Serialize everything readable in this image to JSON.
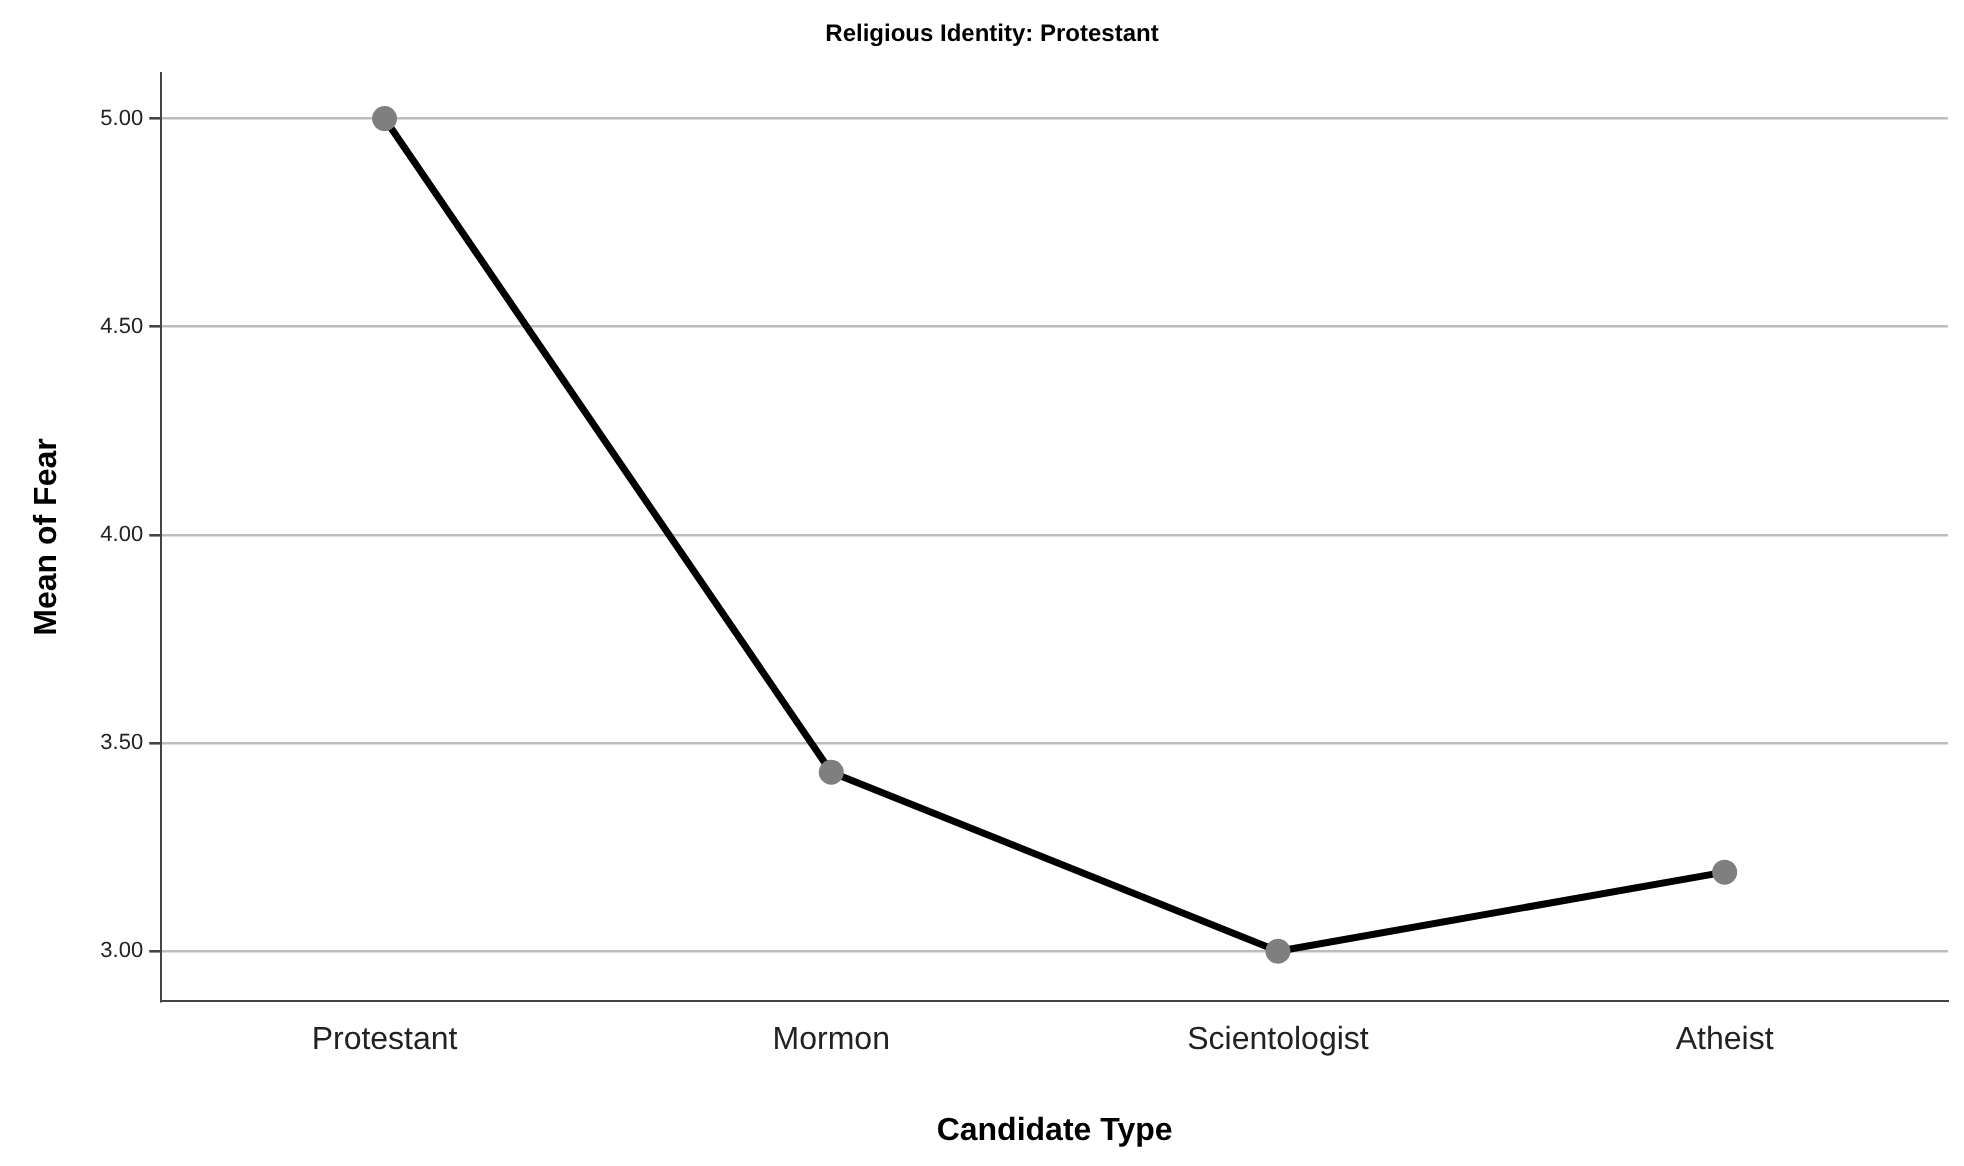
{
  "chart_data": {
    "type": "line",
    "title": "Religious Identity: Protestant",
    "xlabel": "Candidate Type",
    "ylabel": "Mean of Fear",
    "categories": [
      "Protestant",
      "Mormon",
      "Scientologist",
      "Atheist"
    ],
    "series": [
      {
        "color": "#000000",
        "values": [
          5.0,
          3.43,
          3.0,
          3.19
        ]
      }
    ],
    "ylim": [
      2.88,
      5.11
    ],
    "yticks": [
      {
        "value": 3,
        "label": "3.00"
      },
      {
        "value": 3.5,
        "label": "3.50"
      },
      {
        "value": 4,
        "label": "4.00"
      },
      {
        "value": 4.5,
        "label": "4.50"
      },
      {
        "value": 5,
        "label": "5.00"
      }
    ],
    "grid": "y",
    "legend": false,
    "marker": "circle",
    "line_style": "solid"
  }
}
